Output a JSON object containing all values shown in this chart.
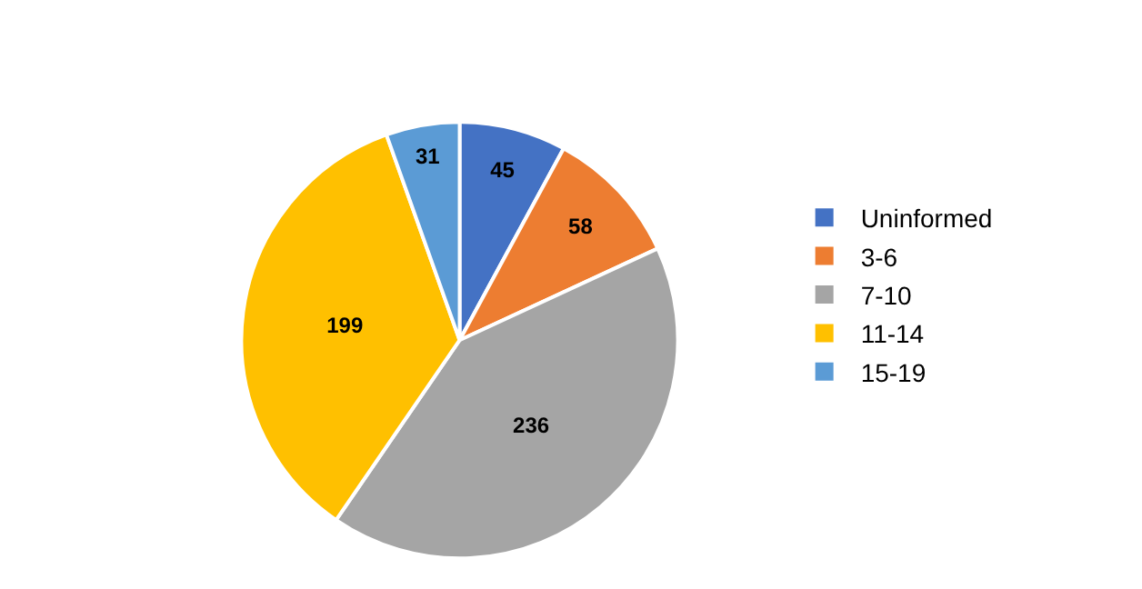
{
  "chart_data": {
    "type": "pie",
    "categories": [
      "Uninformed",
      "3-6",
      "7-10",
      "11-14",
      "15-19"
    ],
    "values": [
      45,
      58,
      236,
      199,
      31
    ],
    "colors": [
      "#4472c4",
      "#ed7d31",
      "#a5a5a5",
      "#ffc000",
      "#5b9bd5"
    ],
    "data_labels": true,
    "legend": "right"
  }
}
